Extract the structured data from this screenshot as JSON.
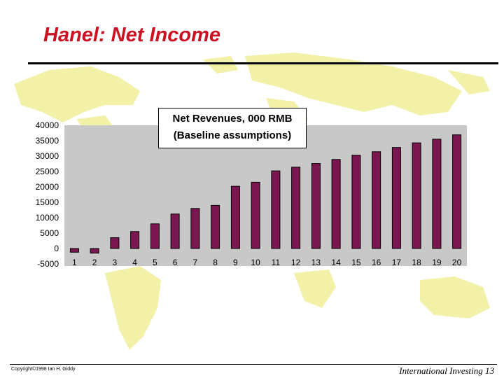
{
  "slide": {
    "title": "Hanel: Net Income",
    "copyright": "Copyright©1998 Ian H. Giddy",
    "footer": "International Investing 13"
  },
  "colors": {
    "title": "#cc1122",
    "bar": "#7a1650",
    "plot_bg": "#c8c8c8",
    "map": "#f3f0a8"
  },
  "chart_data": {
    "type": "bar",
    "title_lines": [
      "Net Revenues, 000 RMB",
      "(Baseline assumptions)"
    ],
    "categories": [
      "1",
      "2",
      "3",
      "4",
      "5",
      "6",
      "7",
      "8",
      "9",
      "10",
      "11",
      "12",
      "13",
      "14",
      "15",
      "16",
      "17",
      "18",
      "19",
      "20"
    ],
    "values": [
      -1200,
      -1500,
      3500,
      5500,
      8000,
      11200,
      13000,
      14000,
      20200,
      21500,
      25200,
      26400,
      27600,
      28900,
      30300,
      31400,
      32800,
      34300,
      35500,
      36900
    ],
    "ylim": [
      -5000,
      40000
    ],
    "yticks": [
      "40000",
      "35000",
      "30000",
      "25000",
      "20000",
      "15000",
      "10000",
      "5000",
      "0",
      "-5000"
    ],
    "grid": false,
    "legend": "none"
  }
}
